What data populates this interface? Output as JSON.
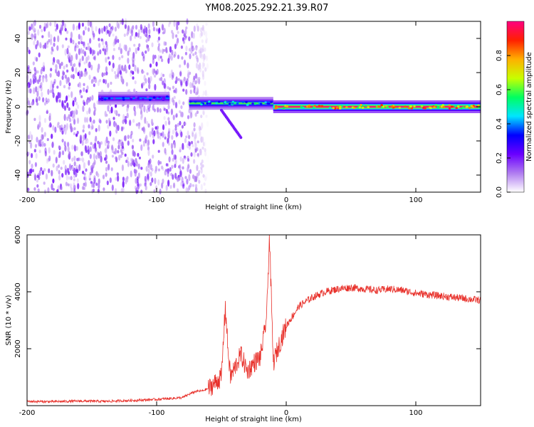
{
  "title": "YM08.2025.292.21.39.R07",
  "colors": {
    "snr_line": "#e8302a",
    "axis": "#000000"
  },
  "chart_data": [
    {
      "type": "heatmap",
      "name": "spectrogram",
      "title": "YM08.2025.292.21.39.R07",
      "xlabel": "Height of straight line (km)",
      "ylabel": "Frequency (Hz)",
      "xlim": [
        -200,
        150
      ],
      "ylim": [
        -50,
        50
      ],
      "xticks": [
        -200,
        -100,
        0,
        100
      ],
      "xtick_labels": [
        "-200",
        "-100",
        "0",
        "100"
      ],
      "yticks": [
        -40,
        -20,
        0,
        20,
        40
      ],
      "ytick_labels": [
        "-40",
        "-20",
        "0",
        "20",
        "40"
      ],
      "colorbar": {
        "label": "Normalized spectral amplitude",
        "range": [
          0,
          1
        ],
        "ticks": [
          0.0,
          0.2,
          0.4,
          0.6,
          0.8
        ],
        "tick_labels": [
          "0.0",
          "0.2",
          "0.4",
          "0.6",
          "0.8"
        ],
        "colormap": [
          "#ffffff",
          "#b07cf0",
          "#6a00ff",
          "#0000ff",
          "#00e5ff",
          "#00ff60",
          "#c8ff00",
          "#ffb000",
          "#ff2000",
          "#ff0080"
        ]
      },
      "features": [
        {
          "desc": "broadband noise",
          "x_range": [
            -200,
            -60
          ],
          "f_range": [
            -50,
            50
          ],
          "amplitude": 0.15
        },
        {
          "desc": "tone band",
          "x_range": [
            -145,
            -90
          ],
          "freq": 5,
          "amplitude": 0.35
        },
        {
          "desc": "tone band",
          "x_range": [
            -75,
            -10
          ],
          "freq": 2,
          "amplitude": 0.55
        },
        {
          "desc": "tone band",
          "x_range": [
            -10,
            150
          ],
          "freq": 0,
          "amplitude": 0.95
        },
        {
          "desc": "descending trace",
          "x_range": [
            -50,
            -35
          ],
          "f_range": [
            -2,
            -18
          ],
          "amplitude": 0.2
        }
      ]
    },
    {
      "type": "line",
      "name": "snr",
      "xlabel": "Height of straight line (km)",
      "ylabel": "SNR (10 * v/v)",
      "xlim": [
        -200,
        150
      ],
      "ylim": [
        0,
        6000
      ],
      "xticks": [
        -200,
        -100,
        0,
        100
      ],
      "xtick_labels": [
        "-200",
        "-100",
        "0",
        "100"
      ],
      "yticks": [
        2000,
        4000,
        6000
      ],
      "ytick_labels": [
        "2000",
        "4000",
        "6000"
      ],
      "series": [
        {
          "name": "SNR",
          "x": [
            -200,
            -180,
            -160,
            -140,
            -120,
            -100,
            -90,
            -80,
            -75,
            -70,
            -65,
            -60,
            -55,
            -50,
            -47,
            -45,
            -43,
            -40,
            -35,
            -30,
            -25,
            -20,
            -17,
            -15,
            -13,
            -10,
            -5,
            0,
            10,
            20,
            30,
            40,
            50,
            60,
            70,
            80,
            90,
            100,
            110,
            120,
            130,
            140,
            150
          ],
          "y": [
            150,
            140,
            160,
            150,
            180,
            220,
            250,
            280,
            400,
            500,
            520,
            600,
            800,
            1000,
            3500,
            2000,
            1000,
            1300,
            1800,
            1200,
            1500,
            1700,
            2500,
            3200,
            6000,
            1500,
            2200,
            2800,
            3500,
            3800,
            4000,
            4100,
            4150,
            4100,
            4050,
            4100,
            4050,
            3950,
            3900,
            3850,
            3800,
            3750,
            3700
          ]
        }
      ]
    }
  ]
}
